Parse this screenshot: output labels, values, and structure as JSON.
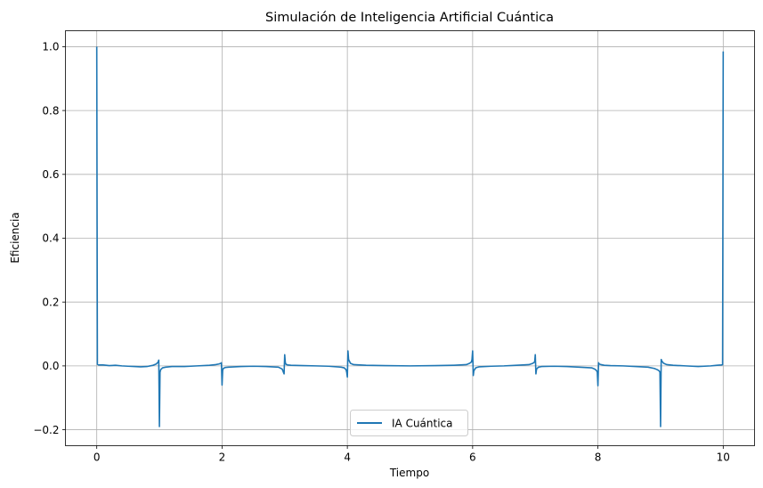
{
  "chart_data": {
    "type": "line",
    "title": "Simulación de Inteligencia Artificial Cuántica",
    "xlabel": "Tiempo",
    "ylabel": "Eficiencia",
    "xlim": [
      -0.5,
      10.5
    ],
    "ylim": [
      -0.25,
      1.05
    ],
    "xticks": [
      0,
      2,
      4,
      6,
      8,
      10
    ],
    "xtick_labels": [
      "0",
      "2",
      "4",
      "6",
      "8",
      "10"
    ],
    "yticks": [
      -0.2,
      0.0,
      0.2,
      0.4,
      0.6,
      0.8,
      1.0
    ],
    "ytick_labels": [
      "−0.2",
      "0.0",
      "0.2",
      "0.4",
      "0.6",
      "0.8",
      "1.0"
    ],
    "grid": true,
    "legend_position": "lower center",
    "series": [
      {
        "name": "IA Cuántica",
        "color": "#1f77b4",
        "x": [
          0,
          0.01,
          0.03,
          0.1,
          0.2,
          0.3,
          0.4,
          0.5,
          0.6,
          0.7,
          0.8,
          0.9,
          0.95,
          0.98,
          0.99,
          1.0,
          1.01,
          1.02,
          1.05,
          1.1,
          1.2,
          1.4,
          1.6,
          1.8,
          1.9,
          1.95,
          1.98,
          1.99,
          2.0,
          2.01,
          2.02,
          2.05,
          2.1,
          2.3,
          2.5,
          2.7,
          2.9,
          2.96,
          2.99,
          3.0,
          3.01,
          3.02,
          3.05,
          3.1,
          3.3,
          3.5,
          3.7,
          3.9,
          3.95,
          3.98,
          3.99,
          4.0,
          4.01,
          4.02,
          4.05,
          4.1,
          4.3,
          4.6,
          5.0,
          5.4,
          5.7,
          5.9,
          5.95,
          5.98,
          5.99,
          6.0,
          6.01,
          6.02,
          6.05,
          6.1,
          6.3,
          6.5,
          6.7,
          6.9,
          6.96,
          6.99,
          7.0,
          7.01,
          7.02,
          7.05,
          7.1,
          7.3,
          7.5,
          7.7,
          7.9,
          7.95,
          7.98,
          7.99,
          8.0,
          8.01,
          8.02,
          8.05,
          8.1,
          8.2,
          8.4,
          8.6,
          8.8,
          8.9,
          8.95,
          8.98,
          8.99,
          9.0,
          9.01,
          9.02,
          9.05,
          9.1,
          9.2,
          9.4,
          9.6,
          9.8,
          9.9,
          9.97,
          9.99,
          10.0
        ],
        "y": [
          1.0,
          0.005,
          0.003,
          0.003,
          0.001,
          0.002,
          0.0,
          -0.001,
          -0.002,
          -0.003,
          -0.002,
          0.002,
          0.006,
          0.012,
          0.018,
          -0.19,
          -0.02,
          -0.012,
          -0.006,
          -0.004,
          -0.002,
          -0.002,
          0.0,
          0.002,
          0.004,
          0.006,
          0.008,
          0.01,
          -0.06,
          -0.014,
          -0.008,
          -0.005,
          -0.004,
          -0.002,
          -0.001,
          -0.002,
          -0.004,
          -0.01,
          -0.025,
          0.035,
          0.01,
          0.005,
          0.003,
          0.002,
          0.001,
          0.0,
          -0.001,
          -0.004,
          -0.006,
          -0.012,
          -0.02,
          -0.035,
          0.047,
          0.02,
          0.008,
          0.004,
          0.002,
          0.001,
          0.0,
          0.001,
          0.002,
          0.004,
          0.008,
          0.012,
          0.02,
          0.047,
          -0.03,
          -0.015,
          -0.006,
          -0.003,
          -0.001,
          0.0,
          0.002,
          0.004,
          0.008,
          0.012,
          0.035,
          -0.025,
          -0.01,
          -0.004,
          -0.002,
          -0.001,
          -0.002,
          -0.004,
          -0.006,
          -0.01,
          -0.015,
          -0.02,
          -0.062,
          0.01,
          0.006,
          0.004,
          0.002,
          0.001,
          0.0,
          -0.002,
          -0.004,
          -0.008,
          -0.012,
          -0.016,
          -0.02,
          -0.19,
          0.02,
          0.015,
          0.008,
          0.004,
          0.002,
          0.0,
          -0.002,
          0.0,
          0.002,
          0.003,
          0.004,
          0.985
        ]
      }
    ]
  }
}
